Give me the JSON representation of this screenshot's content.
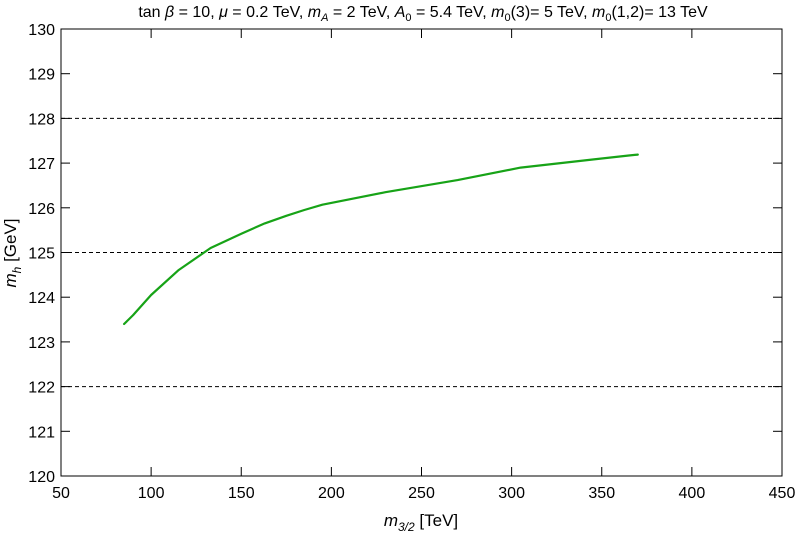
{
  "chart_data": {
    "type": "line",
    "title": "tan β = 10, μ = 0.2 TeV, m_A = 2 TeV, A_0 = 5.4 TeV, m_0(3)= 5 TeV, m_0(1,2)= 13 TeV",
    "title_parts": {
      "p1": "tan ",
      "p2": "β",
      "p3": " = 10, ",
      "p4": "μ",
      "p5": " = 0.2 TeV, ",
      "p6": "m",
      "p7": "A",
      "p8": " = 2 TeV, ",
      "p9": "A",
      "p10": "0",
      "p11": " = 5.4 TeV, ",
      "p12": "m",
      "p13": "0",
      "p14": "(3)= 5 TeV, ",
      "p15": "m",
      "p16": "0",
      "p17": "(1,2)= 13 TeV"
    },
    "xlabel": "m_3/2 [TeV]",
    "xlabel_parts": {
      "sym": "m",
      "sub": "3/2",
      "unit": " [TeV]"
    },
    "ylabel": "m_h [GeV]",
    "ylabel_parts": {
      "sym": "m",
      "sub": "h",
      "unit": " [GeV]"
    },
    "xlim": [
      50,
      450
    ],
    "ylim": [
      120,
      130
    ],
    "xticks": [
      50,
      100,
      150,
      200,
      250,
      300,
      350,
      400,
      450
    ],
    "yticks": [
      120,
      121,
      122,
      123,
      124,
      125,
      126,
      127,
      128,
      129,
      130
    ],
    "reference_lines": [
      122,
      125,
      128
    ],
    "grid": false,
    "series": [
      {
        "color": "#17a317",
        "x": [
          85,
          90,
          100,
          115,
          133,
          150,
          163,
          175,
          185,
          195,
          230,
          270,
          305,
          345,
          365,
          370
        ],
        "y": [
          123.4,
          123.6,
          124.05,
          124.6,
          125.1,
          125.42,
          125.65,
          125.82,
          125.95,
          126.07,
          126.35,
          126.62,
          126.9,
          127.08,
          127.17,
          127.19
        ]
      }
    ]
  }
}
